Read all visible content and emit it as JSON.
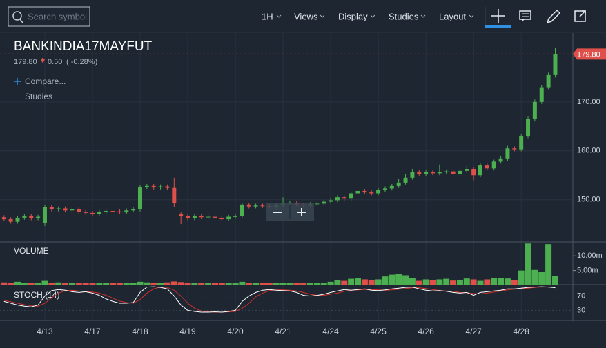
{
  "toolbar": {
    "search_placeholder": "Search symbol",
    "interval": "1H",
    "menus": [
      "Views",
      "Display",
      "Studies",
      "Layout"
    ]
  },
  "header": {
    "symbol": "BANKINDIA17MAYFUT",
    "price": "179.80",
    "change": "0.50",
    "change_pct": "( -0.28%)",
    "compare": "Compare...",
    "studies": "Studies"
  },
  "chart_data": {
    "type": "candlestick",
    "categories": [
      null,
      null,
      null,
      null,
      null,
      null,
      "4/13",
      null,
      null,
      null,
      null,
      null,
      null,
      "4/17",
      null,
      null,
      null,
      null,
      null,
      null,
      "4/18",
      null,
      null,
      null,
      null,
      null,
      null,
      "4/19",
      null,
      null,
      null,
      null,
      null,
      null,
      "4/20",
      null,
      null,
      null,
      null,
      null,
      null,
      "4/21",
      null,
      null,
      null,
      null,
      null,
      null,
      "4/24",
      null,
      null,
      null,
      null,
      null,
      null,
      "4/25",
      null,
      null,
      null,
      null,
      null,
      null,
      "4/26",
      null,
      null,
      null,
      null,
      null,
      null,
      "4/27",
      null,
      null,
      null,
      null,
      null,
      null,
      "4/28",
      null,
      null,
      null,
      null,
      null
    ],
    "open": [
      146.4,
      146.0,
      145.5,
      146.3,
      146.6,
      146.2,
      145.2,
      148.5,
      148.0,
      148.2,
      147.8,
      148.0,
      147.5,
      147.3,
      147.0,
      147.5,
      147.7,
      147.6,
      147.4,
      147.8,
      148.0,
      152.6,
      152.8,
      152.5,
      152.7,
      152.4,
      147.0,
      146.6,
      146.2,
      146.6,
      146.4,
      146.5,
      146.3,
      146.0,
      146.5,
      146.6,
      149.0,
      148.6,
      148.8,
      148.7,
      148.5,
      148.9,
      149.2,
      149.4,
      149.0,
      148.8,
      149.1,
      149.2,
      149.6,
      149.9,
      150.5,
      150.2,
      151.3,
      151.8,
      151.5,
      151.3,
      152.0,
      152.3,
      152.8,
      153.5,
      154.5,
      155.6,
      155.3,
      155.6,
      155.4,
      155.7,
      155.8,
      155.3,
      155.9,
      156.3,
      155.0,
      157.0,
      156.4,
      157.8,
      158.3,
      160.5,
      160.3,
      163.0,
      166.5,
      170.0,
      173.0,
      175.5
    ],
    "high": [
      146.8,
      146.4,
      146.7,
      147.0,
      147.0,
      146.9,
      148.9,
      148.9,
      148.6,
      148.6,
      148.4,
      148.4,
      147.9,
      147.7,
      147.9,
      148.1,
      148.1,
      148.0,
      148.2,
      148.4,
      153.0,
      153.2,
      153.2,
      153.1,
      153.1,
      154.5,
      147.4,
      147.0,
      147.0,
      147.0,
      146.9,
      146.9,
      146.7,
      146.9,
      147.0,
      149.4,
      149.4,
      149.2,
      149.2,
      149.1,
      149.3,
      150.5,
      149.8,
      149.8,
      149.4,
      149.5,
      149.6,
      150.0,
      150.3,
      150.9,
      150.9,
      151.7,
      152.2,
      152.2,
      151.9,
      152.4,
      152.7,
      153.2,
      154.2,
      155.2,
      156.3,
      156.0,
      156.0,
      156.0,
      157.2,
      156.2,
      156.2,
      156.3,
      156.9,
      156.7,
      157.4,
      157.4,
      158.2,
      159.0,
      161.0,
      160.9,
      163.5,
      167.0,
      170.5,
      173.5,
      176.0,
      181.0
    ],
    "low": [
      145.6,
      145.1,
      145.1,
      145.9,
      145.8,
      145.8,
      144.6,
      147.6,
      147.6,
      147.4,
      147.4,
      147.1,
      146.9,
      146.6,
      146.6,
      147.1,
      147.2,
      147.0,
      147.0,
      147.4,
      147.6,
      152.2,
      152.1,
      152.1,
      152.0,
      148.5,
      145.0,
      145.8,
      145.8,
      146.0,
      146.0,
      145.9,
      145.6,
      145.6,
      146.1,
      146.2,
      148.2,
      148.2,
      148.3,
      148.1,
      148.1,
      148.5,
      148.8,
      148.6,
      148.4,
      148.4,
      148.7,
      148.8,
      149.2,
      149.5,
      149.8,
      149.8,
      150.9,
      151.1,
      150.9,
      150.9,
      151.6,
      151.9,
      152.4,
      153.1,
      154.1,
      154.9,
      154.9,
      155.0,
      155.0,
      155.3,
      154.9,
      154.9,
      155.5,
      154.0,
      154.6,
      156.0,
      156.0,
      157.4,
      157.9,
      159.9,
      159.9,
      162.6,
      166.0,
      169.6,
      172.6,
      175.0
    ],
    "close": [
      146.0,
      145.5,
      146.3,
      146.6,
      146.2,
      146.5,
      148.5,
      148.0,
      148.2,
      147.8,
      148.0,
      147.5,
      147.3,
      147.0,
      147.5,
      147.7,
      147.6,
      147.4,
      147.8,
      148.0,
      152.6,
      152.8,
      152.5,
      152.7,
      152.4,
      149.3,
      146.6,
      146.2,
      146.6,
      146.4,
      146.5,
      146.3,
      146.0,
      146.5,
      146.6,
      149.0,
      148.6,
      148.8,
      148.7,
      148.5,
      148.9,
      149.2,
      149.4,
      149.0,
      148.8,
      149.1,
      149.2,
      149.6,
      149.9,
      150.5,
      150.2,
      151.3,
      151.8,
      151.5,
      151.3,
      152.0,
      152.3,
      152.8,
      153.5,
      154.5,
      155.6,
      155.3,
      155.6,
      155.4,
      155.7,
      155.8,
      155.3,
      155.9,
      156.3,
      155.0,
      157.0,
      156.4,
      157.8,
      158.3,
      160.5,
      160.3,
      163.0,
      166.5,
      170.0,
      173.0,
      175.5,
      179.8
    ],
    "up_color": "#4caf50",
    "down_color": "#e0504a",
    "ylim": [
      141.5,
      183.8
    ],
    "yticks": [
      {
        "value": 150,
        "label": "150.00"
      },
      {
        "value": 160,
        "label": "160.00"
      },
      {
        "value": 170,
        "label": "170.00"
      }
    ],
    "grid": true,
    "volume": {
      "title": "VOLUME",
      "values": [
        1.0,
        0.8,
        1.2,
        0.9,
        0.7,
        0.8,
        1.5,
        0.9,
        1.0,
        0.8,
        0.9,
        0.7,
        0.8,
        0.9,
        0.7,
        0.8,
        0.9,
        0.7,
        0.8,
        0.9,
        1.2,
        1.0,
        0.9,
        0.8,
        1.0,
        1.3,
        1.1,
        0.8,
        0.7,
        0.8,
        0.7,
        0.8,
        0.7,
        0.9,
        0.8,
        1.2,
        0.9,
        0.8,
        0.9,
        0.8,
        0.8,
        0.9,
        0.8,
        0.7,
        0.8,
        0.9,
        0.8,
        0.9,
        1.2,
        1.8,
        1.5,
        2.2,
        2.5,
        2.0,
        1.8,
        2.0,
        3.0,
        3.6,
        3.8,
        3.4,
        2.5,
        1.5,
        2.0,
        1.8,
        2.0,
        2.2,
        1.6,
        1.8,
        2.3,
        2.0,
        1.5,
        2.0,
        2.4,
        2.5,
        2.3,
        1.8,
        5.0,
        14.2,
        5.2,
        4.6,
        14.0,
        3.2
      ],
      "ylim": [
        0,
        14.5
      ],
      "yticks": [
        {
          "value": 5,
          "label": "5.00m"
        },
        {
          "value": 10,
          "label": "10.00m"
        }
      ]
    },
    "stoch": {
      "title": "STOCH (14)",
      "k": [
        55,
        50,
        45,
        42,
        40,
        45,
        70,
        85,
        88,
        86,
        82,
        80,
        82,
        78,
        72,
        62,
        55,
        50,
        50,
        52,
        80,
        95,
        96,
        94,
        90,
        70,
        45,
        30,
        27,
        25,
        25,
        26,
        25,
        27,
        30,
        55,
        70,
        80,
        86,
        88,
        86,
        85,
        84,
        80,
        72,
        70,
        72,
        75,
        80,
        84,
        88,
        86,
        88,
        90,
        86,
        85,
        87,
        90,
        92,
        94,
        95,
        90,
        86,
        84,
        85,
        83,
        80,
        78,
        80,
        72,
        80,
        82,
        84,
        86,
        90,
        90,
        92,
        94,
        95,
        96,
        95,
        93
      ],
      "d": [
        58,
        54,
        50,
        46,
        43,
        42,
        50,
        65,
        78,
        85,
        86,
        84,
        82,
        81,
        78,
        72,
        64,
        56,
        52,
        50,
        60,
        78,
        90,
        95,
        94,
        86,
        70,
        50,
        36,
        28,
        26,
        25,
        25,
        26,
        27,
        36,
        50,
        68,
        78,
        85,
        87,
        87,
        86,
        84,
        80,
        75,
        72,
        72,
        75,
        78,
        83,
        86,
        87,
        88,
        88,
        87,
        86,
        87,
        89,
        91,
        93,
        93,
        91,
        88,
        85,
        84,
        83,
        80,
        79,
        77,
        76,
        78,
        81,
        84,
        87,
        89,
        91,
        92,
        94,
        95,
        95,
        95
      ],
      "k_color": "#ffffff",
      "d_color": "#d0302a",
      "ylim": [
        0,
        100
      ],
      "yticks": [
        30,
        70
      ]
    }
  }
}
